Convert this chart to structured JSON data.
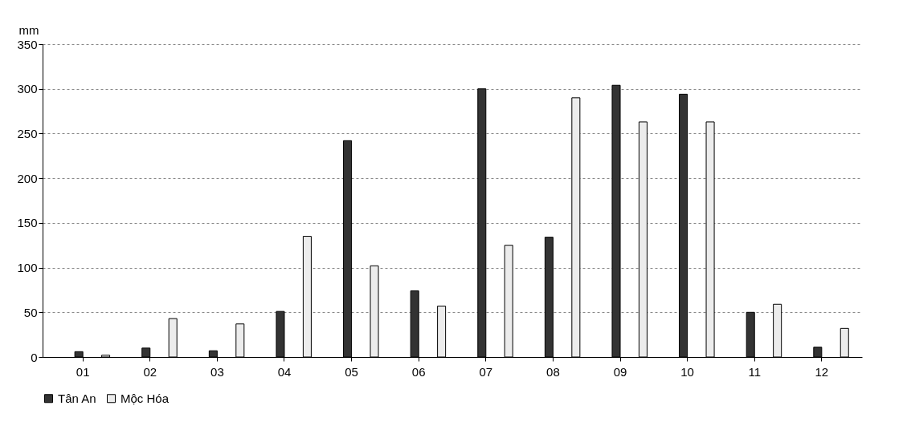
{
  "chart_data": {
    "type": "bar",
    "ylabel": "mm",
    "categories": [
      "01",
      "02",
      "03",
      "04",
      "05",
      "06",
      "07",
      "08",
      "09",
      "10",
      "11",
      "12"
    ],
    "series": [
      {
        "name": "Tân An",
        "color": "#333333",
        "values": [
          6,
          10,
          7,
          51,
          242,
          74,
          300,
          134,
          304,
          294,
          50,
          11
        ]
      },
      {
        "name": "Mộc Hóa",
        "color": "#ececec",
        "values": [
          2,
          43,
          37,
          135,
          102,
          57,
          125,
          290,
          263,
          263,
          59,
          32
        ]
      }
    ],
    "ylim": [
      0,
      350
    ],
    "yticks": [
      0,
      50,
      100,
      150,
      200,
      250,
      300,
      350
    ],
    "grid": "y",
    "legend": "bottom"
  }
}
